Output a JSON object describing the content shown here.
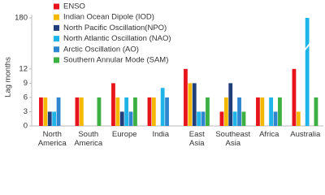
{
  "chart_data": {
    "type": "bar",
    "y_label": "Lag months",
    "categories": [
      "North America",
      "South America",
      "Europe",
      "India",
      "East Asia",
      "Southeast Asia",
      "Africa",
      "Australia"
    ],
    "series": [
      {
        "name": "ENSO",
        "color": "#e8141c",
        "values": [
          6,
          6,
          9,
          6,
          12,
          3,
          6,
          12
        ]
      },
      {
        "name": "Indian Ocean Dipole (IOD)",
        "color": "#f5b800",
        "values": [
          6,
          6,
          6,
          6,
          9,
          6,
          6,
          3
        ]
      },
      {
        "name": "North Pacific Oscillation(NPO)",
        "color": "#1f3e7a",
        "values": [
          3,
          null,
          3,
          null,
          9,
          9,
          null,
          null
        ]
      },
      {
        "name": "North Atlantic Oscillation (NAO)",
        "color": "#1fb4e8",
        "values": [
          3,
          null,
          6,
          8,
          3,
          3,
          6,
          180
        ]
      },
      {
        "name": "Arctic Oscillation (AO)",
        "color": "#2e86d0",
        "values": [
          6,
          null,
          3,
          6,
          3,
          6,
          3,
          null
        ]
      },
      {
        "name": "Southern Annular Mode (SAM)",
        "color": "#3cb043",
        "values": [
          null,
          6,
          6,
          null,
          6,
          3,
          6,
          6
        ]
      }
    ],
    "ylim": [
      0,
      180
    ],
    "ybreak": [
      13,
      178
    ],
    "yticks": [
      0,
      3,
      6,
      9,
      12,
      180
    ]
  }
}
